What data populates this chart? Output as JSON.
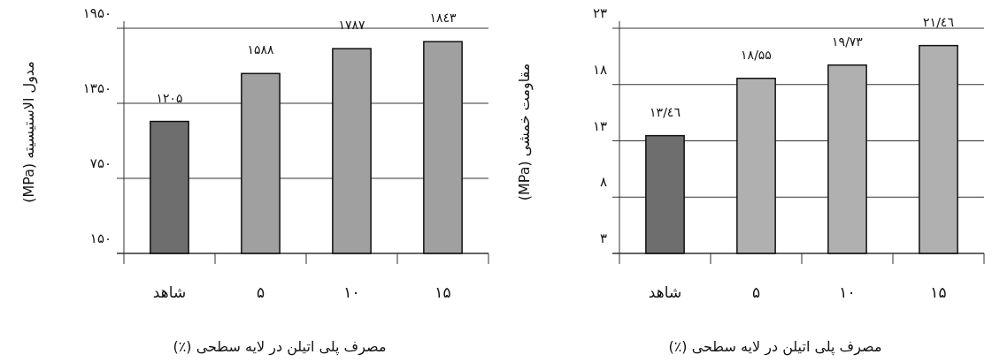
{
  "chart_data": [
    {
      "type": "bar",
      "categories": [
        "شاهد",
        "۵",
        "۱۰",
        "۱۵"
      ],
      "values": [
        1205,
        1588,
        1787,
        1843
      ],
      "value_labels": [
        "۱۲۰۵",
        "۱۵۸۸",
        "۱۷۸۷",
        "۱۸٤۳"
      ],
      "colors": [
        "#6e6e6e",
        "#a0a0a0",
        "#a0a0a0",
        "#a0a0a0"
      ],
      "ylim": [
        150,
        1950
      ],
      "yticks": [
        {
          "value": 150,
          "label": "۱۵۰"
        },
        {
          "value": 750,
          "label": "۷۵۰"
        },
        {
          "value": 1350,
          "label": "۱۳۵۰"
        },
        {
          "value": 1950,
          "label": "۱۹۵۰"
        }
      ],
      "ylabel": "مدول الاستیسیته (MPa)",
      "xlabel": "مصرف پلی اتیلن در لایه سطحی (٪)",
      "grid": "y"
    },
    {
      "type": "bar",
      "categories": [
        "شاهد",
        "۵",
        "۱۰",
        "۱۵"
      ],
      "values": [
        13.46,
        18.55,
        19.73,
        21.46
      ],
      "value_labels": [
        "۱۳/٤٦",
        "۱۸/۵۵",
        "۱۹/۷۳",
        "۲۱/٤٦"
      ],
      "colors": [
        "#6e6e6e",
        "#b0b0b0",
        "#b0b0b0",
        "#b0b0b0"
      ],
      "ylim": [
        3,
        23
      ],
      "yticks": [
        {
          "value": 3,
          "label": "۳"
        },
        {
          "value": 8,
          "label": "۸"
        },
        {
          "value": 13,
          "label": "۱۳"
        },
        {
          "value": 18,
          "label": "۱۸"
        },
        {
          "value": 23,
          "label": "۲۳"
        }
      ],
      "ylabel": "مقاومت خمشی (MPa)",
      "xlabel": "مصرف پلی اتیلن در لایه سطحی (٪)",
      "grid": "y"
    }
  ]
}
